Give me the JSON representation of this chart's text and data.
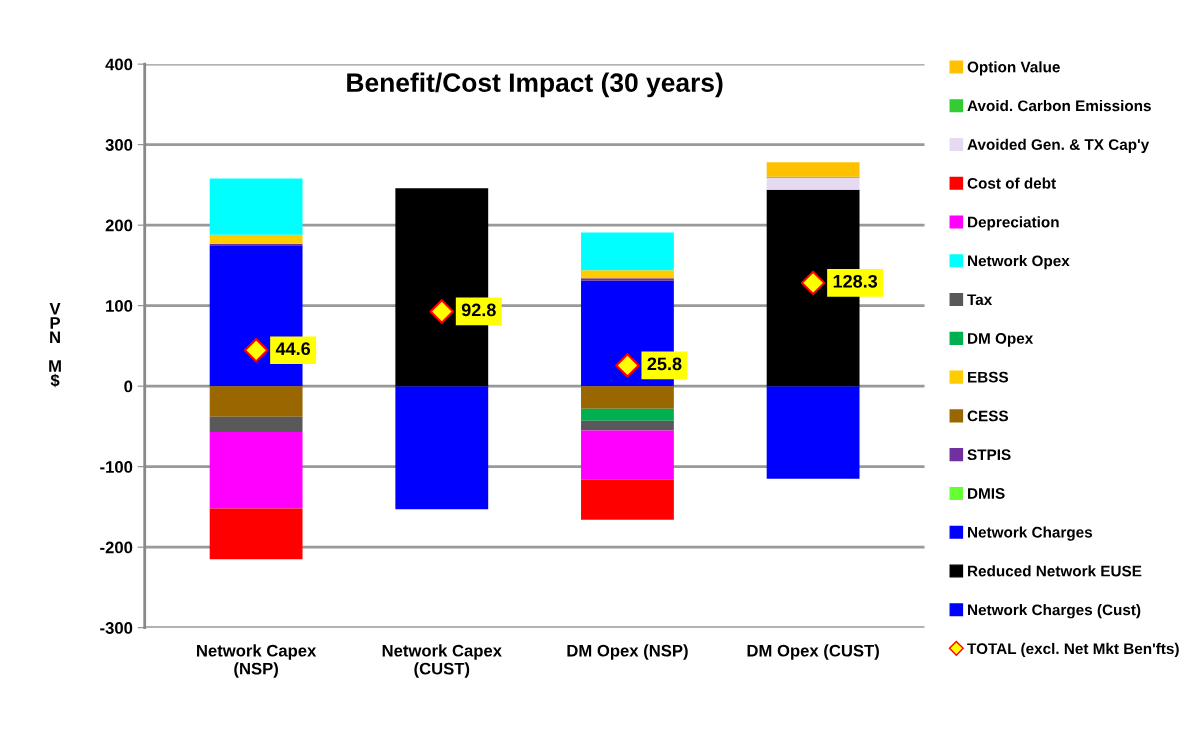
{
  "chart_data": {
    "type": "bar",
    "stacked": true,
    "title": "Benefit/Cost Impact (30 years)",
    "ylabel": "VPN M$",
    "categories": [
      "Network Capex\n(NSP)",
      "Network Capex\n(CUST)",
      "DM Opex (NSP)",
      "DM Opex (CUST)"
    ],
    "ylim": [
      -300,
      400
    ],
    "yticks": [
      -300,
      -200,
      -100,
      0,
      100,
      200,
      300,
      400
    ],
    "grid": "y",
    "legend": "right",
    "series": [
      {
        "name": "Network Charges (Cust)",
        "color": "#0000ff",
        "values": [
          null,
          -153,
          null,
          -115
        ]
      },
      {
        "name": "Reduced Network EUSE",
        "color": "#000000",
        "values": [
          null,
          246,
          null,
          244
        ]
      },
      {
        "name": "Network Charges",
        "color": "#0000ff",
        "values": [
          175,
          null,
          131,
          null
        ]
      },
      {
        "name": "DMIS",
        "color": "#66ff33",
        "values": [
          null,
          null,
          null,
          null
        ]
      },
      {
        "name": "STPIS",
        "color": "#7030a0",
        "values": [
          2,
          null,
          3,
          null
        ]
      },
      {
        "name": "CESS",
        "color": "#996600",
        "values": [
          -38,
          null,
          -28,
          null
        ]
      },
      {
        "name": "EBSS",
        "color": "#ffcc00",
        "values": [
          11,
          null,
          10,
          null
        ]
      },
      {
        "name": "DM Opex",
        "color": "#00b050",
        "values": [
          null,
          null,
          -15,
          null
        ]
      },
      {
        "name": "Tax",
        "color": "#595959",
        "values": [
          -19,
          null,
          -12,
          null
        ]
      },
      {
        "name": "Network Opex",
        "color": "#00ffff",
        "values": [
          70,
          null,
          47,
          null
        ]
      },
      {
        "name": "Depreciation",
        "color": "#ff00ff",
        "values": [
          -95,
          null,
          -61,
          null
        ]
      },
      {
        "name": "Cost of debt",
        "color": "#ff0000",
        "values": [
          -63,
          null,
          -50,
          null
        ]
      },
      {
        "name": "Avoided Gen. & TX Cap'y",
        "color": "#e6d9f2",
        "values": [
          null,
          null,
          null,
          15
        ]
      },
      {
        "name": "Avoid. Carbon Emissions",
        "color": "#33cc33",
        "values": [
          null,
          null,
          null,
          1
        ]
      },
      {
        "name": "Option Value",
        "color": "#ffc000",
        "values": [
          null,
          null,
          null,
          18
        ]
      },
      {
        "name": "TOTAL (excl. Net Mkt Ben'fts)",
        "type": "scatter",
        "marker": "diamond",
        "color": "#ff0000",
        "data_labels": true,
        "values": [
          44.6,
          92.8,
          25.8,
          128.3
        ]
      }
    ]
  }
}
